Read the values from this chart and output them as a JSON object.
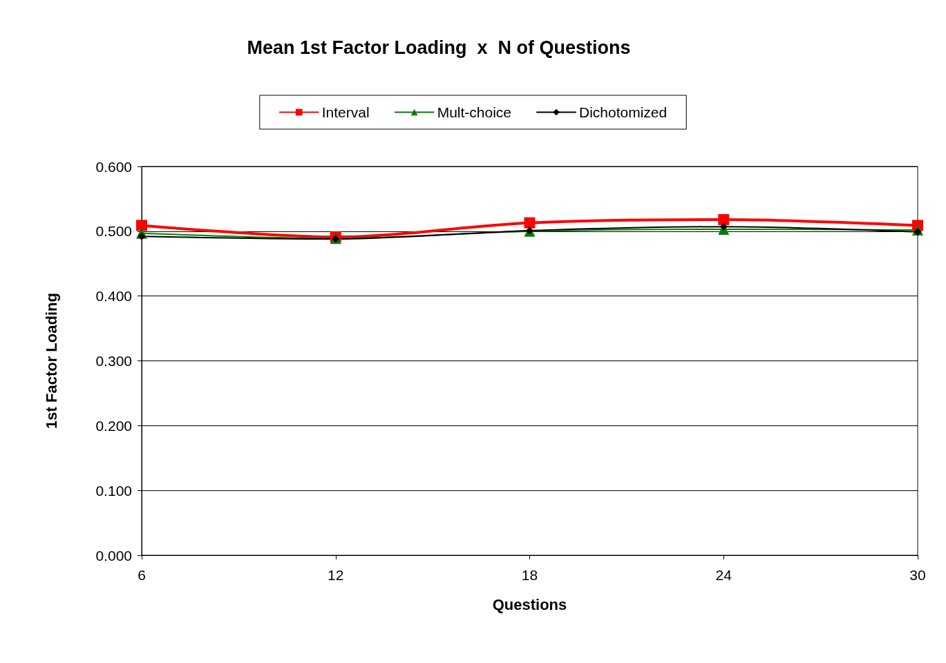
{
  "chart_data": {
    "type": "line",
    "title": "Mean 1st Factor Loading  x  N of Questions",
    "xlabel": "Questions",
    "ylabel": "1st Factor Loading",
    "x": [
      6,
      12,
      18,
      24,
      30
    ],
    "xlim": [
      6,
      30
    ],
    "xticks": [
      6,
      12,
      18,
      24,
      30
    ],
    "ylim": [
      0,
      0.6
    ],
    "yticks": [
      {
        "value": 0,
        "label": "0.000"
      },
      {
        "value": 0.1,
        "label": "0.100"
      },
      {
        "value": 0.2,
        "label": "0.200"
      },
      {
        "value": 0.3,
        "label": "0.300"
      },
      {
        "value": 0.4,
        "label": "0.400"
      },
      {
        "value": 0.5,
        "label": "0.500"
      },
      {
        "value": 0.6,
        "label": "0.600"
      }
    ],
    "grid": "y",
    "legend": "top",
    "series": [
      {
        "name": "Interval",
        "color": "#ff0000",
        "marker": "square",
        "values": [
          0.509,
          0.491,
          0.513,
          0.518,
          0.509
        ]
      },
      {
        "name": "Mult-choice",
        "color": "#008000",
        "marker": "triangle",
        "values": [
          0.497,
          0.489,
          0.5,
          0.503,
          0.502
        ]
      },
      {
        "name": "Dichotomized",
        "color": "#000000",
        "marker": "diamond",
        "values": [
          0.492,
          0.488,
          0.501,
          0.507,
          0.499
        ]
      }
    ]
  }
}
